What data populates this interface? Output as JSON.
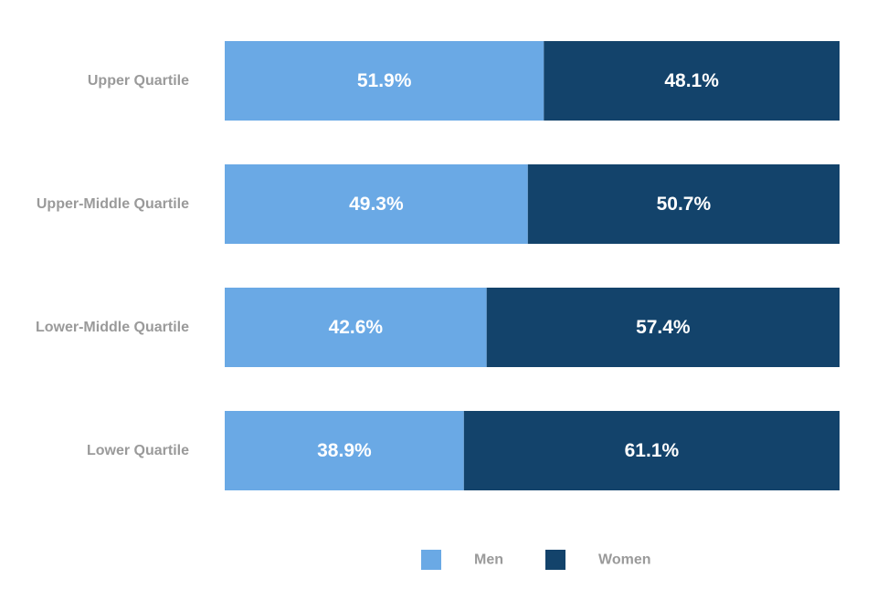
{
  "chart_data": {
    "type": "bar",
    "orientation": "horizontal",
    "stacked": true,
    "normalized_percent": true,
    "categories": [
      "Upper Quartile",
      "Upper-Middle Quartile",
      "Lower-Middle Quartile",
      "Lower Quartile"
    ],
    "series": [
      {
        "name": "Men",
        "color": "#6aa9e5",
        "values": [
          51.9,
          49.3,
          42.6,
          38.9
        ],
        "labels": [
          "51.9%",
          "49.3%",
          "42.6%",
          "38.9%"
        ]
      },
      {
        "name": "Women",
        "color": "#13436b",
        "values": [
          48.1,
          50.7,
          57.4,
          61.1
        ],
        "labels": [
          "48.1%",
          "50.7%",
          "57.4%",
          "61.1%"
        ]
      }
    ],
    "xlim": [
      0,
      100
    ],
    "grid": false,
    "legend_position": "bottom",
    "title": "",
    "xlabel": "",
    "ylabel": ""
  },
  "colors": {
    "category_label": "#9a9a9a",
    "legend_label": "#9a9a9a",
    "data_label": "#ffffff"
  }
}
